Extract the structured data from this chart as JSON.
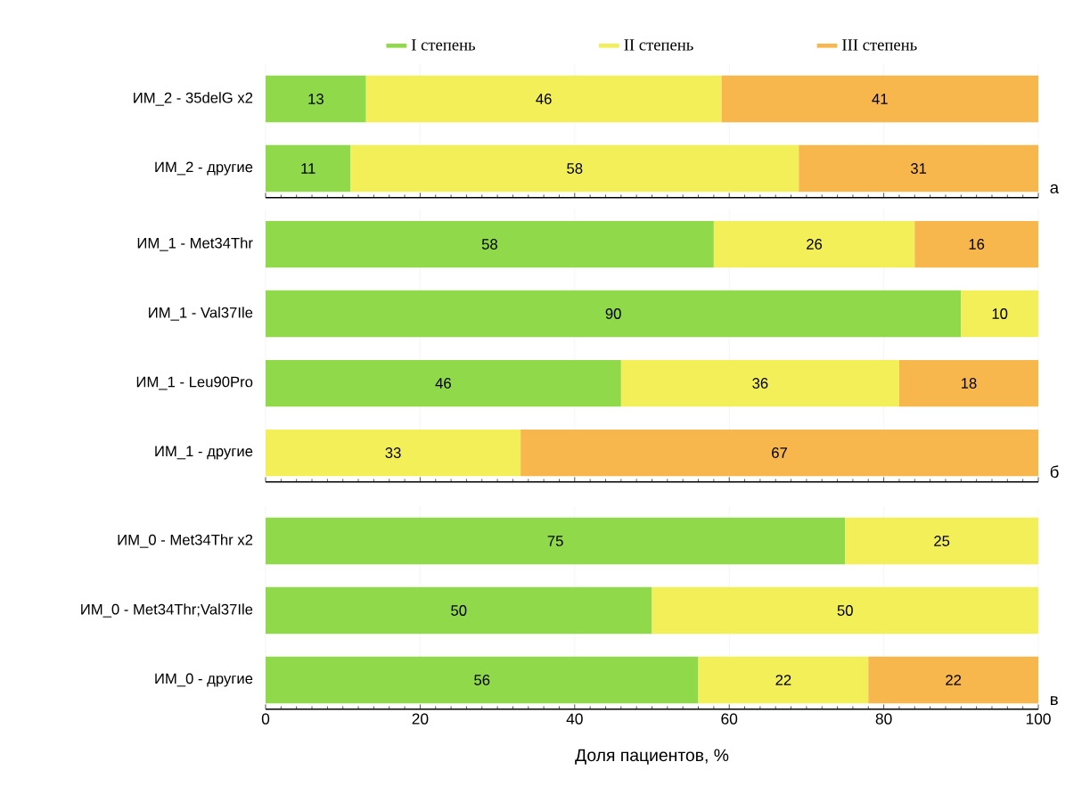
{
  "chart_data": [
    {
      "type": "bar",
      "orientation": "horizontal",
      "stacked": true,
      "categories": [
        "ИМ_2 - 35delG x2",
        "ИМ_2 - другие"
      ],
      "series": [
        {
          "name": "I степень",
          "color": "#8fd94a",
          "values": [
            13,
            11
          ]
        },
        {
          "name": "II степень",
          "color": "#f3ef58",
          "values": [
            46,
            58
          ]
        },
        {
          "name": "III степень",
          "color": "#f8b74c",
          "values": [
            41,
            31
          ]
        }
      ],
      "xlim": [
        0,
        100
      ],
      "xticks": [
        0,
        20,
        40,
        60,
        80,
        100
      ],
      "grid": "x",
      "data_labels": true,
      "legend": "top",
      "tick_labels": "y",
      "annotations": [
        "а"
      ]
    },
    {
      "type": "bar",
      "orientation": "horizontal",
      "stacked": true,
      "categories": [
        "ИМ_1 - Met34Thr",
        "ИМ_1 - Val37Ile",
        "ИМ_1 - Leu90Pro",
        "ИМ_1 - другие"
      ],
      "series": [
        {
          "color": "#8fd94a",
          "values": [
            58,
            90,
            46,
            null
          ]
        },
        {
          "color": "#f3ef58",
          "values": [
            26,
            10,
            36,
            33
          ]
        },
        {
          "color": "#f8b74c",
          "values": [
            16,
            null,
            18,
            67
          ]
        }
      ],
      "xlim": [
        0,
        100
      ],
      "xticks": [
        0,
        20,
        40,
        60,
        80,
        100
      ],
      "grid": "x",
      "data_labels": true,
      "tick_labels": "y",
      "annotations": [
        "б"
      ]
    },
    {
      "type": "bar",
      "orientation": "horizontal",
      "stacked": true,
      "categories": [
        "ИМ_0 - Met34Thr x2",
        "ИМ_0 - Met34Thr;Val37Ile",
        "ИМ_0 - другие"
      ],
      "series": [
        {
          "color": "#8fd94a",
          "values": [
            75,
            50,
            56
          ]
        },
        {
          "color": "#f3ef58",
          "values": [
            25,
            50,
            22
          ]
        },
        {
          "color": "#f8b74c",
          "values": [
            null,
            null,
            22
          ]
        }
      ],
      "xlim": [
        0,
        100
      ],
      "xticks": [
        0,
        20,
        40,
        60,
        80,
        100
      ],
      "grid": "x",
      "data_labels": true,
      "xlabel": "Доля пациентов, %",
      "annotations": [
        "в"
      ]
    }
  ]
}
